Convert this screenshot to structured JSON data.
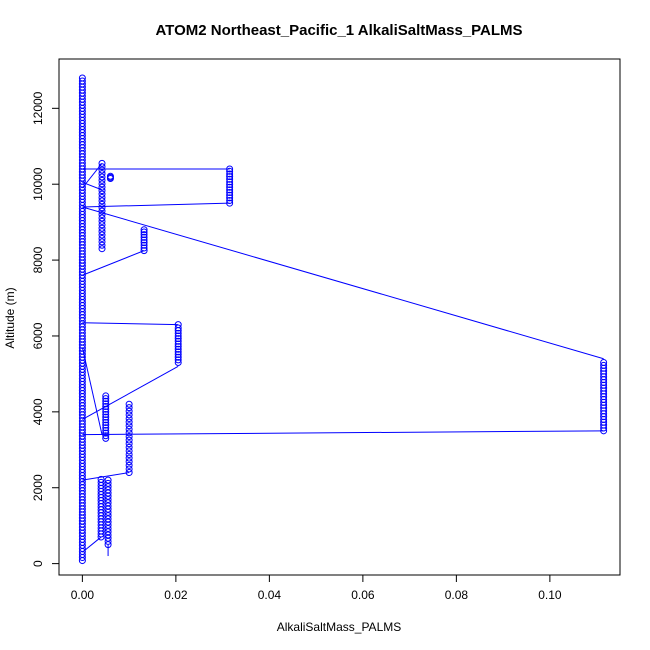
{
  "chart_data": {
    "type": "scatter",
    "title": "ATOM2 Northeast_Pacific_1 AlkaliSaltMass_PALMS",
    "xlabel": "AlkaliSaltMass_PALMS",
    "ylabel": "Altitude (m)",
    "xlim": [
      -0.005,
      0.115
    ],
    "ylim": [
      -300,
      13300
    ],
    "x_ticks": [
      0.0,
      0.02,
      0.04,
      0.06,
      0.08,
      0.1
    ],
    "x_tick_labels": [
      "0.00",
      "0.02",
      "0.04",
      "0.06",
      "0.08",
      "0.10"
    ],
    "y_ticks": [
      0,
      2000,
      4000,
      6000,
      8000,
      10000,
      12000
    ],
    "y_tick_labels": [
      "0",
      "2000",
      "4000",
      "6000",
      "8000",
      "10000",
      "12000"
    ],
    "grid": false,
    "marker": "open-circle",
    "color": "#0000ff",
    "series": [
      {
        "x": [
          0,
          0,
          0,
          0,
          0,
          0,
          0,
          0,
          0,
          0,
          0,
          0,
          0,
          0,
          0,
          0,
          0,
          0,
          0,
          0,
          0,
          0,
          0,
          0,
          0,
          0,
          0,
          0,
          0,
          0,
          0,
          0,
          0,
          0,
          0,
          0,
          0,
          0,
          0,
          0,
          0,
          0,
          0,
          0,
          0,
          0,
          0,
          0,
          0,
          0,
          0,
          0,
          0,
          0,
          0,
          0,
          0,
          0,
          0,
          0,
          0,
          0,
          0,
          0,
          0,
          0,
          0,
          0,
          0,
          0,
          0,
          0,
          0,
          0,
          0,
          0,
          0,
          0,
          0,
          0,
          0,
          0,
          0,
          0,
          0,
          0,
          0,
          0,
          0,
          0,
          0,
          0,
          0,
          0,
          0,
          0,
          0,
          0,
          0,
          0,
          0,
          0,
          0,
          0,
          0,
          0,
          0,
          0,
          0,
          0,
          0,
          0,
          0,
          0,
          0,
          0,
          0,
          0,
          0,
          0,
          0,
          0,
          0,
          0,
          0,
          0,
          0,
          0,
          0,
          0,
          0,
          0,
          0,
          0,
          0,
          0,
          0,
          0,
          0,
          0,
          0,
          0,
          0,
          0,
          0,
          0,
          0,
          0,
          0,
          0,
          0,
          0,
          0,
          0,
          0,
          0,
          0,
          0,
          0,
          0
        ],
        "y": [
          80,
          160,
          240,
          320,
          400,
          480,
          560,
          640,
          720,
          800,
          880,
          960,
          1040,
          1120,
          1200,
          1280,
          1360,
          1440,
          1520,
          1600,
          1680,
          1760,
          1840,
          1920,
          2000,
          2080,
          2160,
          2240,
          2320,
          2400,
          2480,
          2560,
          2640,
          2720,
          2800,
          2880,
          2960,
          3040,
          3120,
          3200,
          3280,
          3360,
          3440,
          3520,
          3600,
          3680,
          3760,
          3840,
          3920,
          4000,
          4080,
          4160,
          4240,
          4320,
          4400,
          4480,
          4560,
          4640,
          4720,
          4800,
          4880,
          4960,
          5040,
          5120,
          5200,
          5280,
          5360,
          5440,
          5520,
          5600,
          5680,
          5760,
          5840,
          5920,
          6000,
          6080,
          6160,
          6240,
          6320,
          6400,
          6480,
          6560,
          6640,
          6720,
          6800,
          6880,
          6960,
          7040,
          7120,
          7200,
          7280,
          7360,
          7440,
          7520,
          7600,
          7680,
          7760,
          7840,
          7920,
          8000,
          8080,
          8160,
          8240,
          8320,
          8400,
          8480,
          8560,
          8640,
          8720,
          8800,
          8880,
          8960,
          9040,
          9120,
          9200,
          9280,
          9360,
          9440,
          9520,
          9600,
          9680,
          9760,
          9840,
          9920,
          10000,
          10080,
          10160,
          10240,
          10320,
          10400,
          10480,
          10560,
          10640,
          10720,
          10800,
          10880,
          10960,
          11040,
          11120,
          11200,
          11280,
          11360,
          11440,
          11520,
          11600,
          11680,
          11760,
          11840,
          11920,
          12000,
          12080,
          12160,
          12240,
          12320,
          12400,
          12480,
          12560,
          12640,
          12720,
          12800
        ]
      },
      {
        "x": [
          0.004,
          0.004,
          0.004,
          0.004,
          0.004,
          0.004,
          0.004,
          0.004,
          0.004,
          0.004,
          0.004,
          0.004,
          0.004,
          0.004,
          0.004,
          0.004,
          0.004,
          0.004,
          0.004,
          0.004
        ],
        "y": [
          700,
          780,
          860,
          940,
          1020,
          1100,
          1180,
          1260,
          1340,
          1420,
          1500,
          1580,
          1660,
          1740,
          1820,
          1900,
          1980,
          2060,
          2140,
          2220
        ]
      },
      {
        "x": [
          0.0055,
          0.0055,
          0.0055,
          0.0055,
          0.0055,
          0.0055,
          0.0055,
          0.0055,
          0.0055,
          0.0055,
          0.0055,
          0.0055,
          0.0055,
          0.0055,
          0.0055,
          0.0055,
          0.0055,
          0.0055,
          0.0055,
          0.0055,
          0.0055
        ],
        "y": [
          500,
          585,
          670,
          755,
          840,
          925,
          1010,
          1095,
          1180,
          1265,
          1350,
          1435,
          1520,
          1605,
          1690,
          1775,
          1860,
          1945,
          2030,
          2115,
          2200
        ]
      },
      {
        "x": [
          0.01,
          0.01,
          0.01,
          0.01,
          0.01,
          0.01,
          0.01,
          0.01,
          0.01,
          0.01,
          0.01,
          0.01,
          0.01,
          0.01,
          0.01,
          0.01,
          0.01,
          0.01,
          0.01,
          0.01
        ],
        "y": [
          2400,
          2495,
          2590,
          2685,
          2780,
          2875,
          2970,
          3065,
          3160,
          3255,
          3350,
          3445,
          3540,
          3635,
          3730,
          3825,
          3920,
          4015,
          4110,
          4200
        ]
      },
      {
        "x": [
          0.005,
          0.005,
          0.005,
          0.005,
          0.005,
          0.005,
          0.005,
          0.005,
          0.005,
          0.005,
          0.005,
          0.005,
          0.005,
          0.005,
          0.005,
          0.005,
          0.005
        ],
        "y": [
          3300,
          3370,
          3440,
          3510,
          3580,
          3650,
          3720,
          3790,
          3860,
          3930,
          4000,
          4070,
          4140,
          4210,
          4280,
          4350,
          4420
        ]
      },
      {
        "x": [
          0.0205,
          0.0205,
          0.0205,
          0.0205,
          0.0205,
          0.0205,
          0.0205,
          0.0205,
          0.0205,
          0.0205,
          0.0205,
          0.0205,
          0.0205,
          0.0205,
          0.0205
        ],
        "y": [
          5300,
          5370,
          5440,
          5510,
          5580,
          5650,
          5720,
          5790,
          5860,
          5930,
          6000,
          6070,
          6140,
          6210,
          6300
        ]
      },
      {
        "x": [
          0.1115,
          0.1115,
          0.1115,
          0.1115,
          0.1115,
          0.1115,
          0.1115,
          0.1115,
          0.1115,
          0.1115,
          0.1115,
          0.1115,
          0.1115,
          0.1115,
          0.1115,
          0.1115,
          0.1115,
          0.1115,
          0.1115,
          0.1115,
          0.1115,
          0.1115,
          0.1115,
          0.1115,
          0.1115
        ],
        "y": [
          3500,
          3575,
          3650,
          3725,
          3800,
          3875,
          3950,
          4025,
          4100,
          4175,
          4250,
          4325,
          4400,
          4475,
          4550,
          4625,
          4700,
          4775,
          4850,
          4925,
          5000,
          5075,
          5150,
          5225,
          5300
        ]
      },
      {
        "x": [
          0.0042,
          0.0042,
          0.0042,
          0.0042,
          0.0042,
          0.0042,
          0.0042,
          0.0042,
          0.0042,
          0.0042,
          0.0042,
          0.0042,
          0.0042,
          0.0042,
          0.0042,
          0.0042,
          0.0042,
          0.0042,
          0.0042,
          0.0042,
          0.0042,
          0.0042,
          0.0042,
          0.0042,
          0.0042,
          0.0042
        ],
        "y": [
          8300,
          8390,
          8480,
          8570,
          8660,
          8750,
          8840,
          8930,
          9020,
          9110,
          9200,
          9290,
          9380,
          9470,
          9560,
          9650,
          9740,
          9830,
          9920,
          10010,
          10100,
          10190,
          10280,
          10370,
          10460,
          10550
        ]
      },
      {
        "x": [
          0.0132,
          0.0132,
          0.0132,
          0.0132,
          0.0132,
          0.0132,
          0.0132,
          0.0132,
          0.0132
        ],
        "y": [
          8250,
          8320,
          8390,
          8460,
          8530,
          8600,
          8670,
          8740,
          8800
        ]
      },
      {
        "x": [
          0.0315,
          0.0315,
          0.0315,
          0.0315,
          0.0315,
          0.0315,
          0.0315,
          0.0315,
          0.0315,
          0.0315,
          0.0315,
          0.0315,
          0.0315,
          0.0315
        ],
        "y": [
          9500,
          9570,
          9640,
          9710,
          9780,
          9850,
          9920,
          9990,
          10060,
          10130,
          10200,
          10270,
          10340,
          10400
        ]
      },
      {
        "x": [
          0.006,
          0.006,
          0.006
        ],
        "y": [
          10150,
          10180,
          10210
        ]
      }
    ],
    "connecting_lines": [
      {
        "x": [
          0,
          0.0315
        ],
        "y": [
          10400,
          10400
        ]
      },
      {
        "x": [
          0,
          0.0315
        ],
        "y": [
          9400,
          9500
        ]
      },
      {
        "x": [
          0,
          0.1115
        ],
        "y": [
          9400,
          5400
        ]
      },
      {
        "x": [
          0,
          0.0132
        ],
        "y": [
          7600,
          8250
        ]
      },
      {
        "x": [
          0,
          0.0205
        ],
        "y": [
          6350,
          6300
        ]
      },
      {
        "x": [
          0,
          0.0205
        ],
        "y": [
          3800,
          5200
        ]
      },
      {
        "x": [
          0,
          0.1115
        ],
        "y": [
          3400,
          3500
        ]
      },
      {
        "x": [
          0,
          0.0042
        ],
        "y": [
          9900,
          10550
        ]
      },
      {
        "x": [
          0.0042,
          0
        ],
        "y": [
          9850,
          10050
        ]
      },
      {
        "x": [
          0,
          0.0042
        ],
        "y": [
          5700,
          3400
        ]
      },
      {
        "x": [
          0,
          0.004
        ],
        "y": [
          300,
          700
        ]
      },
      {
        "x": [
          0.0055,
          0.0055
        ],
        "y": [
          200,
          500
        ]
      },
      {
        "x": [
          0,
          0.01
        ],
        "y": [
          2200,
          2400
        ]
      }
    ]
  }
}
